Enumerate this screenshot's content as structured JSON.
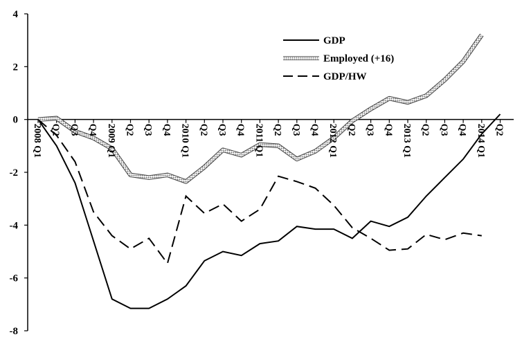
{
  "chart_data": {
    "type": "line",
    "title": "",
    "xlabel": "",
    "ylabel": "",
    "ylim": [
      -8,
      4
    ],
    "yticks": [
      4,
      2,
      0,
      -2,
      -4,
      -6,
      -8
    ],
    "grid": false,
    "legend_position": "top-right",
    "x": [
      "2008 Q1",
      "Q2",
      "Q3",
      "Q4",
      "2009 Q1",
      "Q2",
      "Q3",
      "Q4",
      "2010 Q1",
      "Q2",
      "Q3",
      "Q4",
      "2011 Q1",
      "Q2",
      "Q3",
      "Q4",
      "2012 Q1",
      "Q2",
      "Q3",
      "Q4",
      "2013 Q1",
      "Q2",
      "Q3",
      "Q4",
      "2014 Q1",
      "Q2"
    ],
    "series": [
      {
        "name": "GDP",
        "style": "solid",
        "color": "#000000",
        "values": [
          0.0,
          -1.0,
          -2.4,
          -4.6,
          -6.8,
          -7.15,
          -7.15,
          -6.8,
          -6.3,
          -5.35,
          -5.0,
          -5.15,
          -4.7,
          -4.6,
          -4.05,
          -4.15,
          -4.15,
          -4.5,
          -3.85,
          -4.05,
          -3.7,
          -2.9,
          -2.2,
          -1.5,
          -0.55,
          0.2
        ]
      },
      {
        "name": "Employed (+16)",
        "style": "dotted-band",
        "color": "#808080",
        "values": [
          0.0,
          0.05,
          -0.45,
          -0.7,
          -1.1,
          -2.1,
          -2.2,
          -2.1,
          -2.35,
          -1.8,
          -1.15,
          -1.35,
          -0.95,
          -1.0,
          -1.5,
          -1.2,
          -0.7,
          -0.05,
          0.4,
          0.8,
          0.65,
          0.9,
          1.5,
          2.2,
          3.2,
          null
        ]
      },
      {
        "name": "GDP/HW",
        "style": "dashed",
        "color": "#000000",
        "values": [
          0.0,
          -0.6,
          -1.6,
          -3.5,
          -4.4,
          -4.9,
          -4.5,
          -5.45,
          -2.9,
          -3.55,
          -3.2,
          -3.85,
          -3.4,
          -2.15,
          -2.35,
          -2.6,
          -3.25,
          -4.1,
          -4.5,
          -4.95,
          -4.9,
          -4.35,
          -4.55,
          -4.3,
          -4.4,
          null
        ]
      }
    ]
  }
}
